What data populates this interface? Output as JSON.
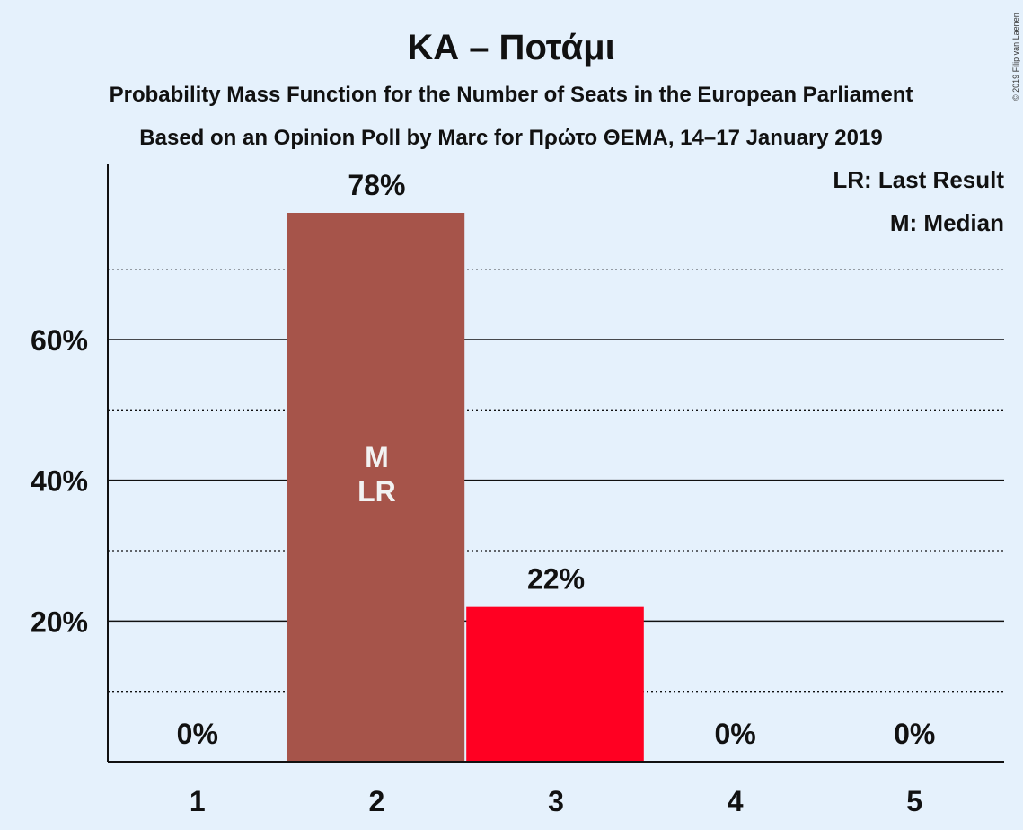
{
  "header": {
    "title": "ΚΑ – Ποτάμι",
    "subtitle1": "Probability Mass Function for the Number of Seats in the European Parliament",
    "subtitle2": "Based on an Opinion Poll by Marc for Πρώτο ΘΕΜΑ, 14–17 January 2019"
  },
  "legend": {
    "last_result": "LR: Last Result",
    "median": "M: Median"
  },
  "copyright": "© 2019 Filip van Laenen",
  "chart_data": {
    "type": "bar",
    "title": "ΚΑ – Ποτάμι",
    "categories": [
      "1",
      "2",
      "3",
      "4",
      "5"
    ],
    "values": [
      0,
      78,
      22,
      0,
      0
    ],
    "value_labels": [
      "0%",
      "78%",
      "22%",
      "0%",
      "0%"
    ],
    "ylim": [
      0,
      85
    ],
    "yticks": [
      20,
      40,
      60
    ],
    "ytick_labels": [
      "20%",
      "40%",
      "60%"
    ],
    "minor_gridlines": [
      10,
      30,
      50,
      70
    ],
    "grid": true,
    "legend_position": "top-right",
    "markers": {
      "median_seat": "2",
      "last_result_seat": "2",
      "median_label": "M",
      "last_result_label": "LR"
    },
    "bar_colors": [
      "#a6544a",
      "#a6544a",
      "#ff0022",
      "#a6544a",
      "#a6544a"
    ]
  }
}
